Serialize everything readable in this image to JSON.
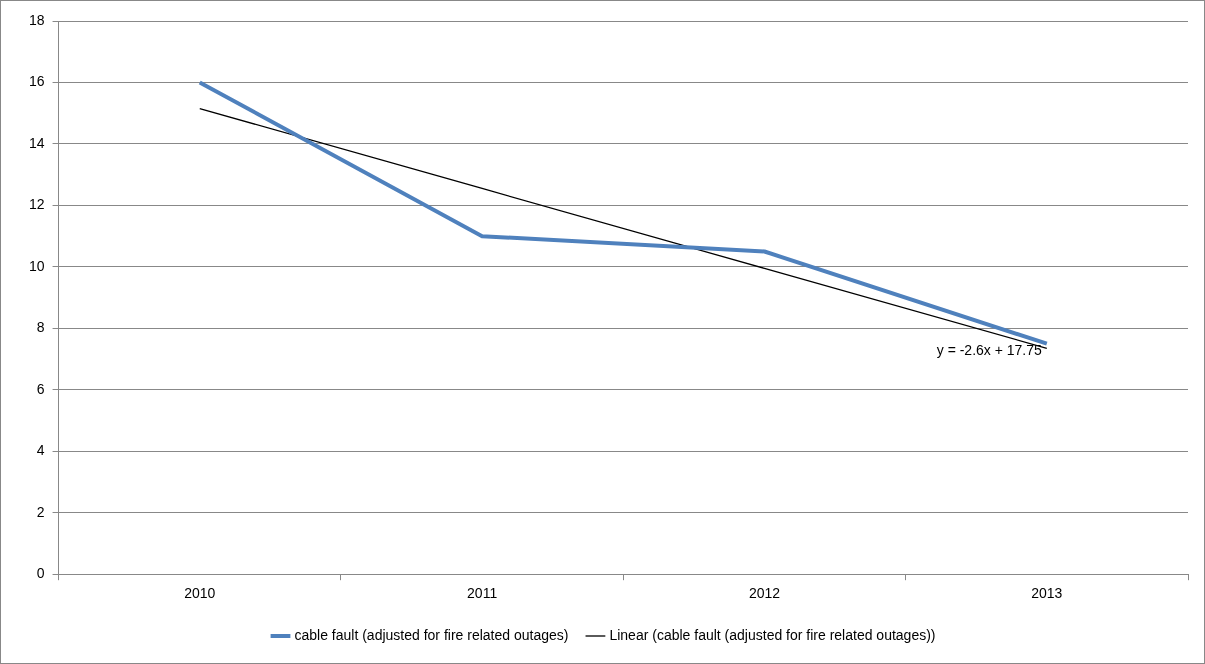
{
  "chart_data": {
    "type": "line",
    "categories": [
      "2010",
      "2011",
      "2012",
      "2013"
    ],
    "series": [
      {
        "name": "cable fault (adjusted for fire related outages)",
        "color": "#4f81bd",
        "values": [
          16,
          11,
          10.5,
          7.5
        ]
      },
      {
        "name": "Linear (cable fault (adjusted for fire related outages))",
        "type": "line",
        "color": "#000000",
        "values": [
          15.15,
          12.55,
          9.95,
          7.35
        ]
      }
    ],
    "ylim": [
      0,
      18
    ],
    "yticks": [
      0,
      2,
      4,
      6,
      8,
      10,
      12,
      14,
      16,
      18
    ],
    "grid": "y",
    "legend": "bottom",
    "marker": "none",
    "line_style": "solid",
    "annotations": [
      {
        "text": "y = -2.6x + 17.75",
        "x": "2013",
        "y": 7.35
      }
    ]
  }
}
